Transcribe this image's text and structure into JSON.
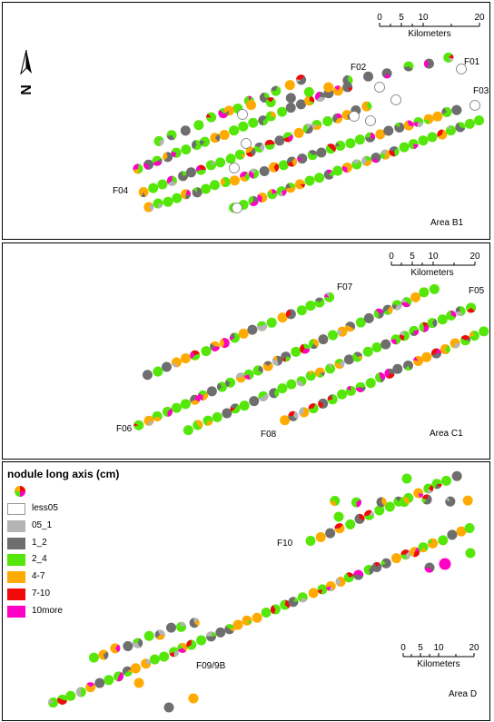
{
  "colors": {
    "less05": "#ffffff",
    "05_1": "#b4b4b4",
    "1_2": "#6e6e6e",
    "2_4": "#55e60a",
    "4-7": "#ffaa00",
    "7-10": "#f00a0a",
    "10more": "#ff00c5"
  },
  "legend": {
    "title": "nodule long axis (cm)",
    "items": [
      {
        "key": "less05",
        "label": "less05"
      },
      {
        "key": "05_1",
        "label": "05_1"
      },
      {
        "key": "1_2",
        "label": "1_2"
      },
      {
        "key": "2_4",
        "label": "2_4"
      },
      {
        "key": "4-7",
        "label": "4-7"
      },
      {
        "key": "7-10",
        "label": "7-10"
      },
      {
        "key": "10more",
        "label": "10more"
      }
    ]
  },
  "scalebar": {
    "ticks": [
      "0",
      "5",
      "10",
      "20"
    ],
    "unit": "Kilometers"
  },
  "north_arrow": {
    "icon": "north-arrow-icon",
    "label": "N"
  },
  "panels": [
    {
      "area": "Area B1",
      "track_labels": [
        "F01",
        "F02",
        "F03",
        "F04"
      ]
    },
    {
      "area": "Area C1",
      "track_labels": [
        "F05",
        "F06",
        "F07",
        "F08"
      ]
    },
    {
      "area": "Area D",
      "track_labels": [
        "F10",
        "F09/9B"
      ]
    }
  ]
}
